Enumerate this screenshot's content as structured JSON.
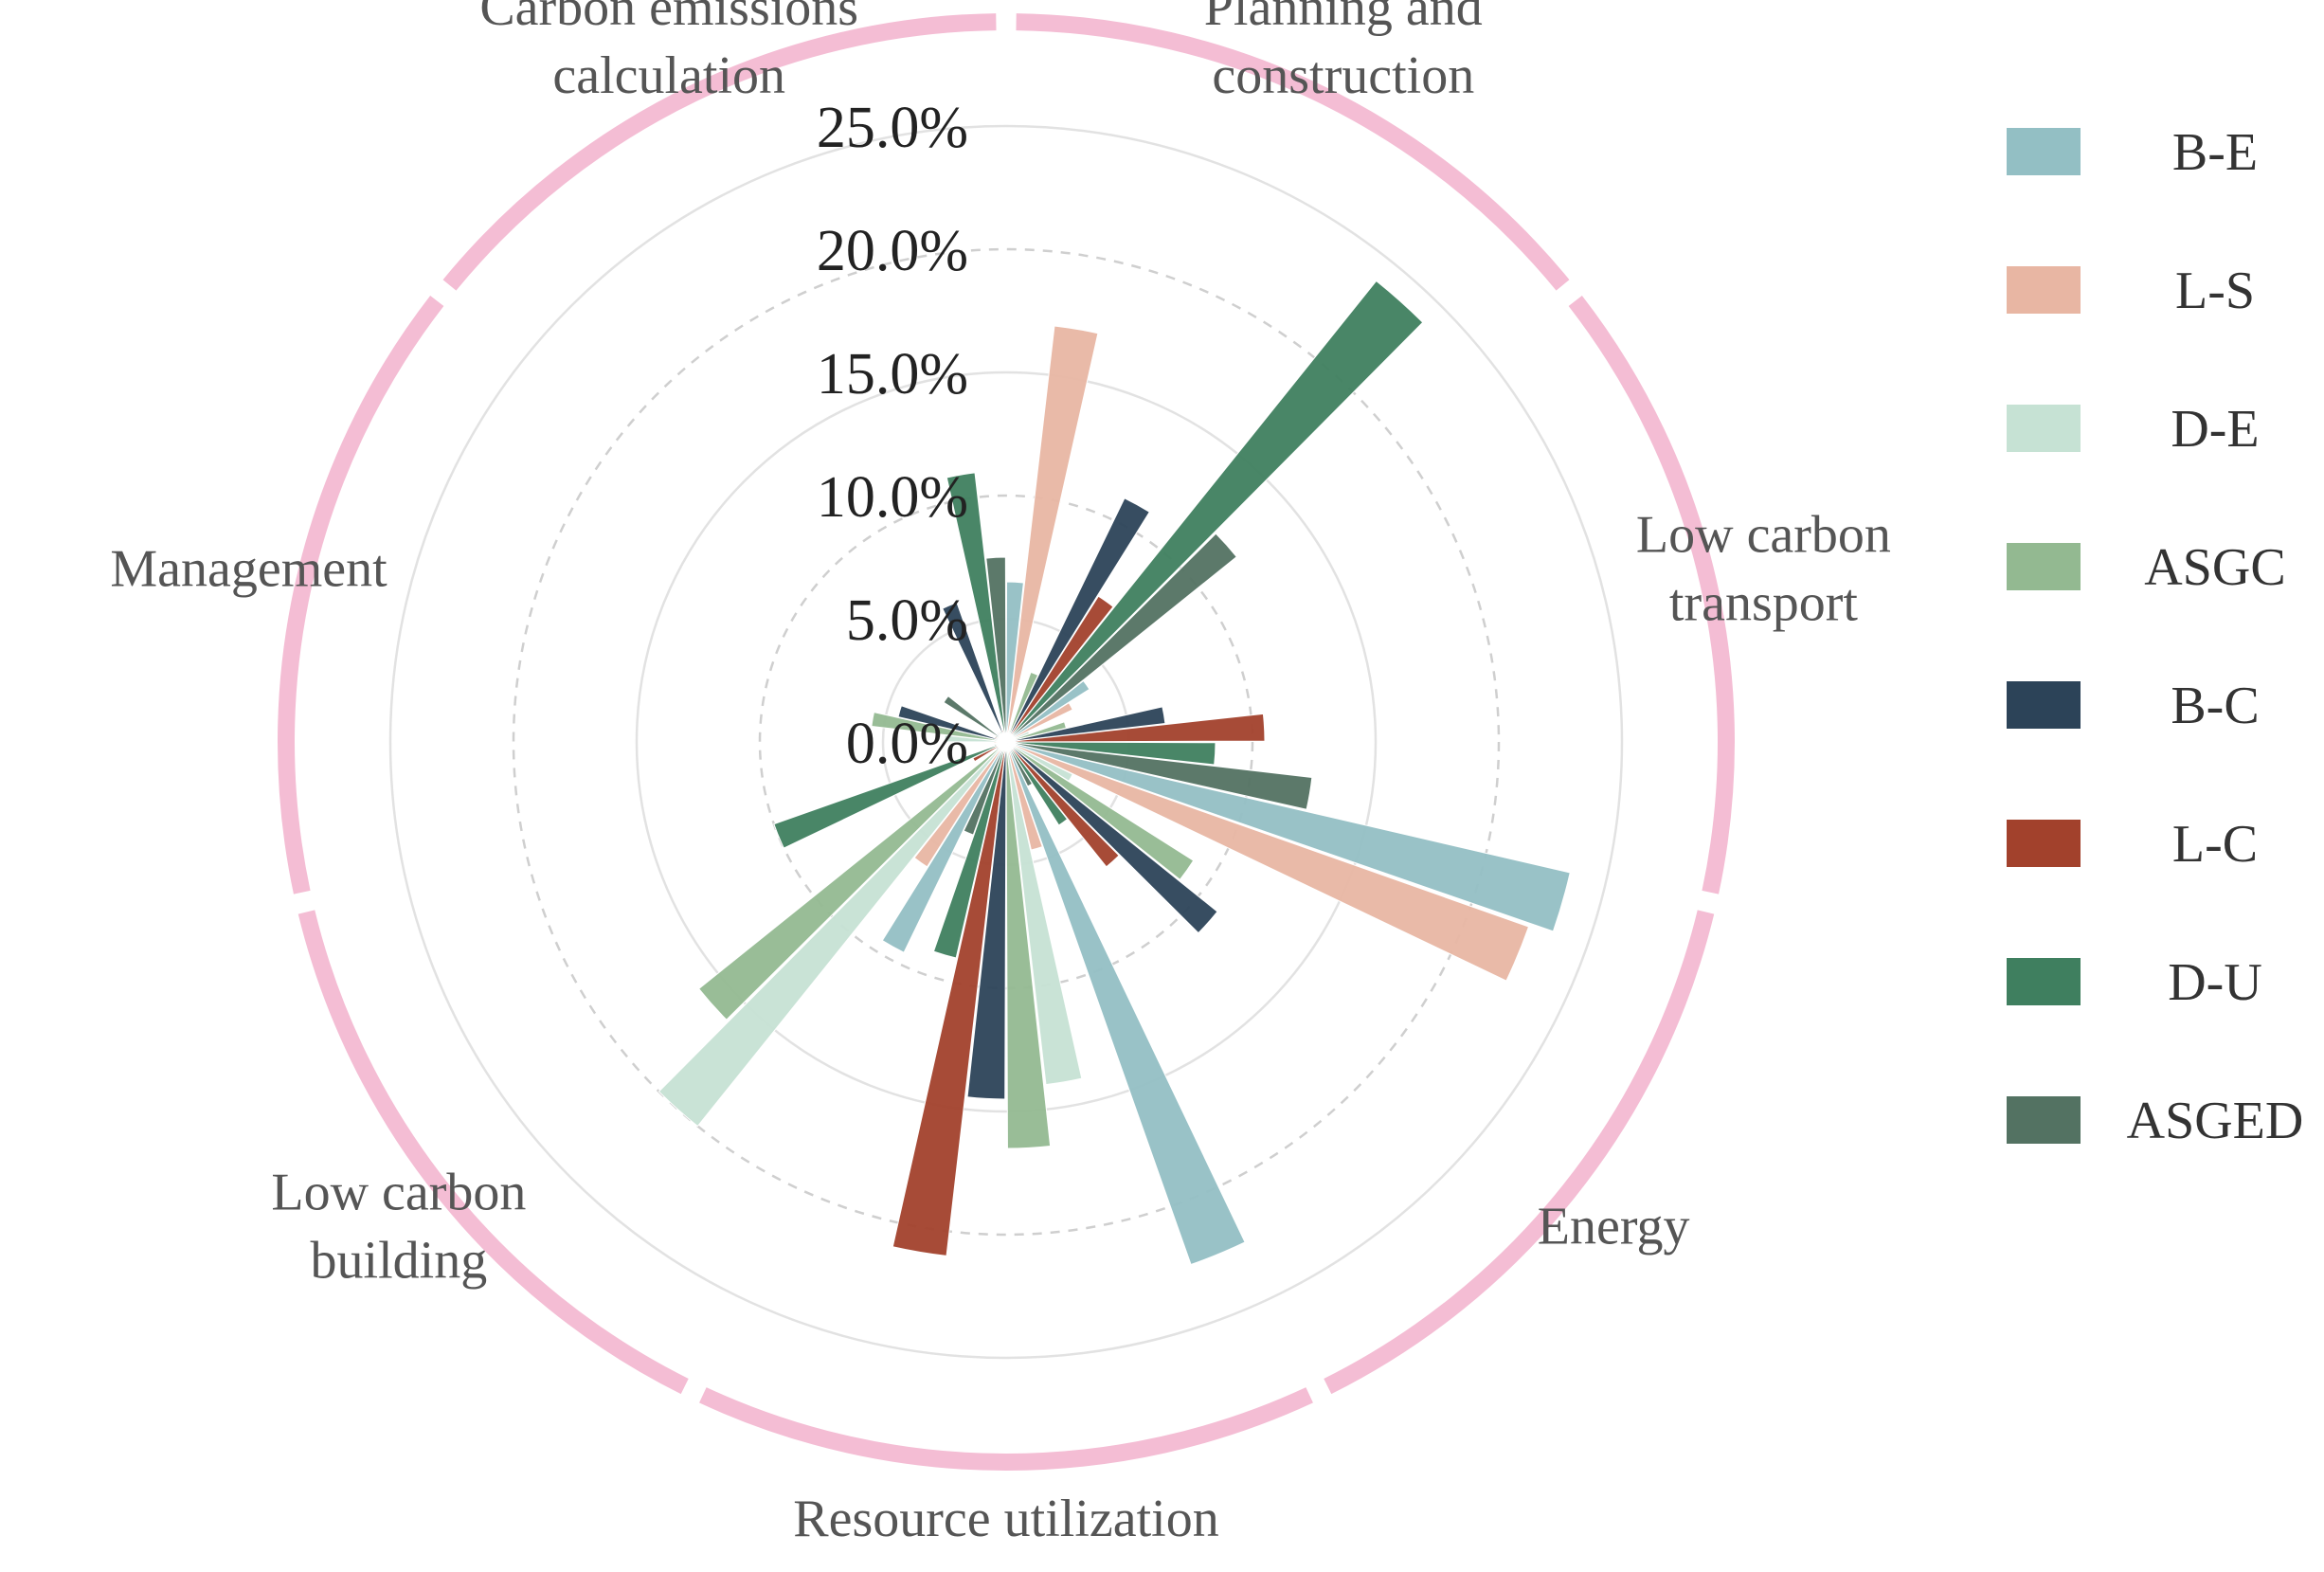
{
  "chart_data": {
    "type": "polar-bar",
    "title": "",
    "radial_axis": {
      "min": 0,
      "max": 25,
      "ticks": [
        0,
        5,
        10,
        15,
        20,
        25
      ],
      "tick_labels": [
        "0.0%",
        "5.0%",
        "10.0%",
        "15.0%",
        "20.0%",
        "25.0%"
      ]
    },
    "categories": [
      "Planning and construction",
      "Low carbon transport",
      "Energy",
      "Resource utilization",
      "Low carbon building",
      "Management",
      "Carbon emissions calculation"
    ],
    "series": [
      {
        "name": "B-E",
        "color": "#93bfc4",
        "values": [
          6.5,
          4.0,
          23.5,
          22.5,
          9.5,
          0.5,
          0.5
        ]
      },
      {
        "name": "L-S",
        "color": "#e8b6a3",
        "values": [
          17.0,
          3.0,
          22.5,
          4.5,
          6.0,
          0.5,
          0.5
        ]
      },
      {
        "name": "D-E",
        "color": "#c6e2d4",
        "values": [
          0.5,
          1.0,
          3.0,
          14.0,
          20.0,
          2.5,
          0.5
        ]
      },
      {
        "name": "ASGC",
        "color": "#93b991",
        "values": [
          3.0,
          2.5,
          9.0,
          16.5,
          16.0,
          5.5,
          0.5
        ]
      },
      {
        "name": "B-C",
        "color": "#2c4358",
        "values": [
          11.0,
          6.5,
          11.0,
          14.5,
          0.5,
          4.5,
          6.0
        ]
      },
      {
        "name": "L-C",
        "color": "#a2412c",
        "values": [
          7.0,
          10.5,
          6.5,
          21.0,
          1.5,
          0.5,
          0.5
        ]
      },
      {
        "name": "D-U",
        "color": "#3f7f5f",
        "values": [
          24.0,
          8.5,
          4.0,
          9.0,
          10.0,
          0.5,
          11.0
        ]
      },
      {
        "name": "ASGED",
        "color": "#537262",
        "values": [
          12.0,
          12.5,
          2.0,
          4.0,
          0.5,
          3.0,
          7.5
        ]
      }
    ],
    "legend": {
      "position": "right"
    },
    "ring_color": "#f4bdd4"
  }
}
